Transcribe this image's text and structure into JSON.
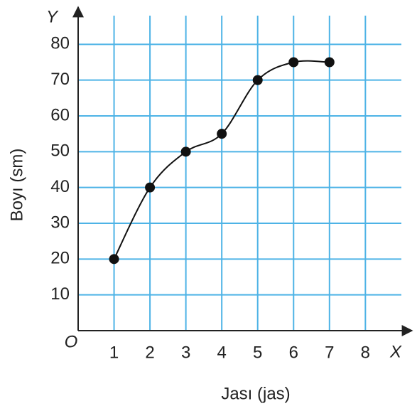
{
  "chart_data": {
    "type": "line",
    "x_axis_label": "Jası (jas)",
    "y_axis_label": "Boyı (sm)",
    "x_axis_name": "X",
    "y_axis_name": "Y",
    "origin_label": "O",
    "x": [
      1,
      2,
      3,
      4,
      5,
      6,
      7
    ],
    "series": [
      {
        "color": "#111111",
        "values": [
          20,
          40,
          50,
          55,
          70,
          75,
          75
        ]
      }
    ],
    "xlim": [
      0,
      9.2
    ],
    "ylim": [
      0,
      90
    ],
    "xticks": [
      1,
      2,
      3,
      4,
      5,
      6,
      7,
      8
    ],
    "yticks": [
      10,
      20,
      30,
      40,
      50,
      60,
      70,
      80
    ],
    "grid": true,
    "grid_color": "#4db3e6",
    "smooth": true
  }
}
